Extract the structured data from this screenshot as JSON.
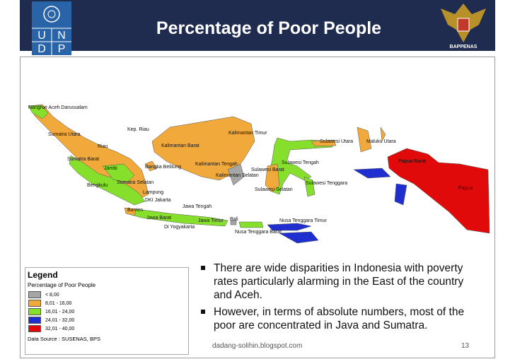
{
  "header": {
    "title": "Percentage of Poor People",
    "logo_letters": [
      "U",
      "N",
      "D",
      "P"
    ],
    "right_logo": "BAPPENAS"
  },
  "map": {
    "labels": [
      "Nangroe Aceh Darussalam",
      "Sumatra Utara",
      "Riau",
      "Kep. Riau",
      "Sumatra Barat",
      "Jambi",
      "Bangka Belitung",
      "Bengkulu",
      "Sumatra Selatan",
      "Lampung",
      "DKI Jakarta",
      "Banten",
      "Jawa Barat",
      "Jawa Tengah",
      "Di Yogyakarta",
      "Jawa Timur",
      "Bali",
      "Nusa Tenggara Barat",
      "Nusa Tenggara Timur",
      "Kalimantan Barat",
      "Kalimantan Timur",
      "Kalimantan Tengah",
      "Kalimantan Selatan",
      "Sulawesi Utara",
      "Sulawesi Tengah",
      "Sulawesi Barat",
      "Sulawesi Selatan",
      "Sulawesi Tenggara",
      "Maluku Utara",
      "Papua Barat",
      "Papua"
    ]
  },
  "legend": {
    "title": "Legend",
    "subtitle": "Percentage of Poor People",
    "items": [
      {
        "label": "< 8,00",
        "color": "#a6a6a6"
      },
      {
        "label": "8,01 - 16,00",
        "color": "#f2a93b"
      },
      {
        "label": "16,01 - 24,00",
        "color": "#86e02b"
      },
      {
        "label": "24,01 - 32,00",
        "color": "#1f2fcf"
      },
      {
        "label": "32,01 - 40,00",
        "color": "#e00a0a"
      }
    ],
    "source": "Data Source  :  SUSENAS, BPS"
  },
  "bullets": [
    "There are wide disparities in Indonesia with poverty rates particularly alarming in the East of the country and Aceh.",
    "However, in terms of absolute numbers, most of the poor are concentrated in Java and Sumatra."
  ],
  "footer": {
    "source": "dadang-solihin.blogspot.com",
    "page": "13"
  }
}
